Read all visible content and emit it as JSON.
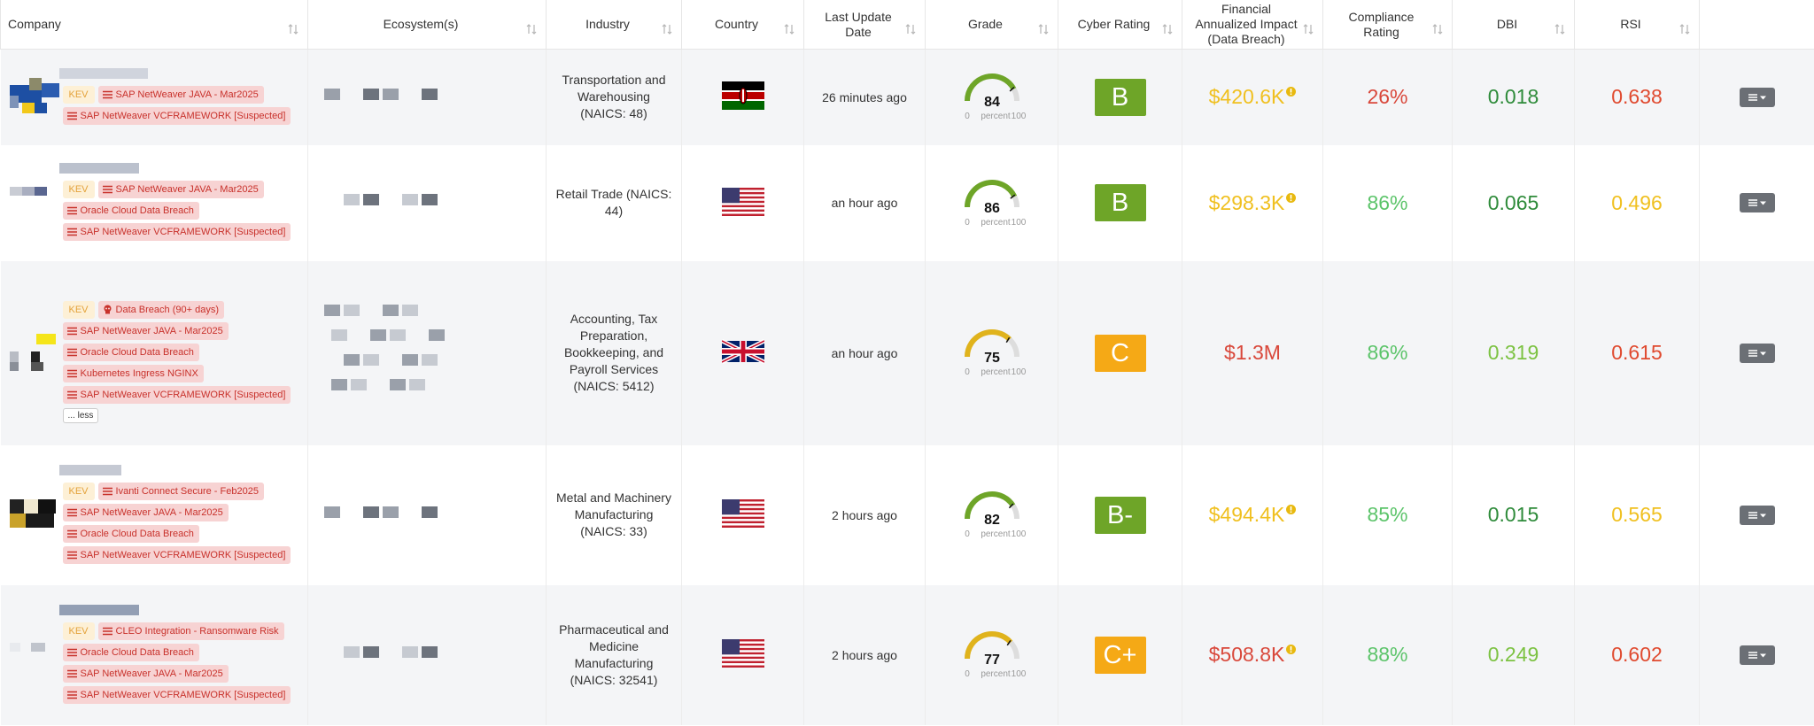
{
  "table": {
    "headers": [
      "Company",
      "Ecosystem(s)",
      "Industry",
      "Country",
      "Last Update Date",
      "Grade",
      "Cyber Rating",
      "Financial Annualized Impact (Data Breach)",
      "Compliance Rating",
      "DBI",
      "RSI"
    ],
    "gauge": {
      "min": 0,
      "max": 100,
      "unit": "percent"
    },
    "rows": [
      {
        "kev": "KEV",
        "tags": [
          "SAP NetWeaver JAVA - Mar2025",
          "SAP NetWeaver VCFRAMEWORK [Suspected]"
        ],
        "industry": "Transportation and Warehousing (NAICS: 48)",
        "last_update": "26 minutes ago",
        "grade": 84,
        "grade_color": "#6ea528",
        "cyber_rating": "B",
        "cyber_color": "#6ea528",
        "financial": "$420.6K",
        "financial_color": "#f0c020",
        "financial_info": true,
        "compliance": "26%",
        "compliance_color": "#d9483b",
        "dbi": 0.018,
        "dbi_color": "#2e8b3a",
        "rsi": 0.638,
        "rsi_color": "#e04a2f"
      },
      {
        "kev": "KEV",
        "tags": [
          "SAP NetWeaver JAVA - Mar2025",
          "Oracle Cloud Data Breach",
          "SAP NetWeaver VCFRAMEWORK [Suspected]"
        ],
        "industry": "Retail Trade (NAICS: 44)",
        "last_update": "an hour ago",
        "grade": 86,
        "grade_color": "#6ea528",
        "cyber_rating": "B",
        "cyber_color": "#6ea528",
        "financial": "$298.3K",
        "financial_color": "#f0c020",
        "financial_info": true,
        "compliance": "86%",
        "compliance_color": "#5cc46a",
        "dbi": 0.065,
        "dbi_color": "#2e8b3a",
        "rsi": 0.496,
        "rsi_color": "#f0c020"
      },
      {
        "kev": "KEV",
        "tags": [
          "Data Breach (90+ days)",
          "SAP NetWeaver JAVA - Mar2025",
          "Oracle Cloud Data Breach",
          "Kubernetes Ingress NGINX",
          "SAP NetWeaver VCFRAMEWORK [Suspected]"
        ],
        "less": "... less",
        "industry": "Accounting, Tax Preparation, Bookkeeping, and Payroll Services (NAICS: 5412)",
        "last_update": "an hour ago",
        "grade": 75,
        "grade_color": "#e0b31c",
        "cyber_rating": "C",
        "cyber_color": "#f5a916",
        "financial": "$1.3M",
        "financial_color": "#d9483b",
        "financial_info": false,
        "compliance": "86%",
        "compliance_color": "#5cc46a",
        "dbi": 0.319,
        "dbi_color": "#7cc242",
        "rsi": 0.615,
        "rsi_color": "#e04a2f"
      },
      {
        "kev": "KEV",
        "tags": [
          "Ivanti Connect Secure - Feb2025",
          "SAP NetWeaver JAVA - Mar2025",
          "Oracle Cloud Data Breach",
          "SAP NetWeaver VCFRAMEWORK [Suspected]"
        ],
        "industry": "Metal and Machinery Manufacturing (NAICS: 33)",
        "last_update": "2 hours ago",
        "grade": 82,
        "grade_color": "#6ea528",
        "cyber_rating": "B-",
        "cyber_color": "#6ea528",
        "financial": "$494.4K",
        "financial_color": "#f0c020",
        "financial_info": true,
        "compliance": "85%",
        "compliance_color": "#5cc46a",
        "dbi": 0.015,
        "dbi_color": "#2e8b3a",
        "rsi": 0.565,
        "rsi_color": "#f0c020"
      },
      {
        "kev": "KEV",
        "tags": [
          "CLEO Integration - Ransomware Risk",
          "Oracle Cloud Data Breach",
          "SAP NetWeaver JAVA - Mar2025",
          "SAP NetWeaver VCFRAMEWORK [Suspected]"
        ],
        "industry": "Pharmaceutical and Medicine Manufacturing (NAICS: 32541)",
        "last_update": "2 hours ago",
        "grade": 77,
        "grade_color": "#e0b31c",
        "cyber_rating": "C+",
        "cyber_color": "#f5a916",
        "financial": "$508.8K",
        "financial_color": "#d9483b",
        "financial_info": true,
        "compliance": "88%",
        "compliance_color": "#5cc46a",
        "dbi": 0.249,
        "dbi_color": "#7cc242",
        "rsi": 0.602,
        "rsi_color": "#e04a2f"
      }
    ]
  }
}
